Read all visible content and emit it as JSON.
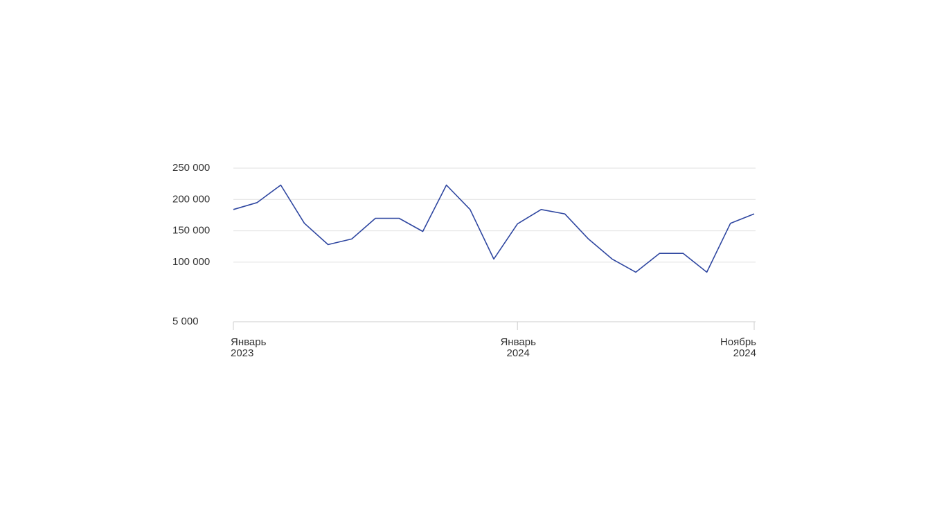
{
  "chart_data": {
    "type": "line",
    "categories": [
      "Январь 2023",
      null,
      null,
      null,
      null,
      null,
      null,
      null,
      null,
      null,
      null,
      null,
      "Январь 2024",
      null,
      null,
      null,
      null,
      null,
      null,
      null,
      null,
      null,
      "Ноябрь 2024"
    ],
    "series": [
      {
        "color": "#2e46a0",
        "values": [
          184000,
          195000,
          223000,
          162000,
          128000,
          137000,
          170000,
          170000,
          149000,
          223000,
          184000,
          105000,
          161000,
          184000,
          177000,
          137000,
          105000,
          84000,
          114000,
          114000,
          84000,
          162000,
          177000
        ]
      }
    ],
    "ylim": [
      5000,
      250000
    ],
    "yticks": [
      {
        "value": 5000,
        "label": "5 000"
      },
      {
        "value": 100000,
        "label": "100 000"
      },
      {
        "value": 150000,
        "label": "150 000"
      },
      {
        "value": 200000,
        "label": "200 000"
      },
      {
        "value": 250000,
        "label": "250 000"
      }
    ],
    "grid": true
  }
}
